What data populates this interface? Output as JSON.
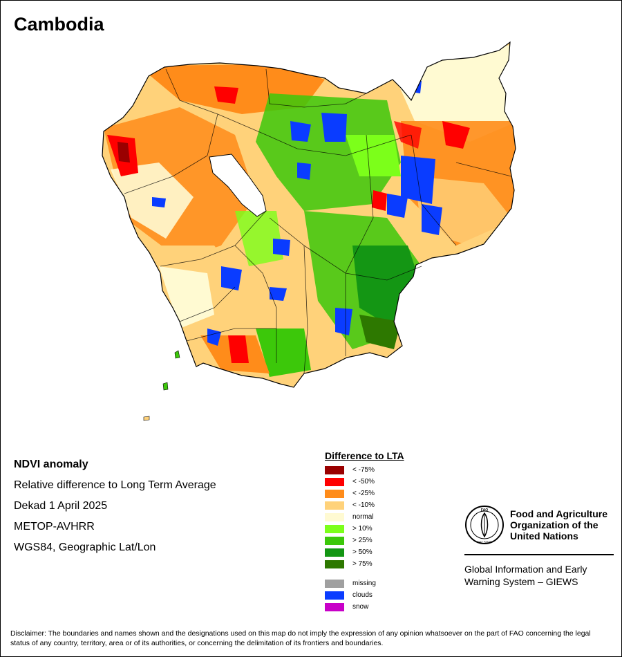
{
  "title": "Cambodia",
  "metadata": [
    "NDVI anomaly",
    "Relative difference to Long Term Average",
    "Dekad 1 April 2025",
    "METOP-AVHRR",
    "WGS84, Geographic Lat/Lon"
  ],
  "legend": {
    "title": "Difference to LTA",
    "items": [
      {
        "label": "< -75%",
        "color": "#9a0000"
      },
      {
        "label": "< -50%",
        "color": "#ff0000"
      },
      {
        "label": "< -25%",
        "color": "#ff8c1a"
      },
      {
        "label": "< -10%",
        "color": "#ffd27a"
      },
      {
        "label": "normal",
        "color": "#fffad2"
      },
      {
        "label": "> 10%",
        "color": "#7cff1a"
      },
      {
        "label": "> 25%",
        "color": "#3cc80a"
      },
      {
        "label": "> 50%",
        "color": "#149614"
      },
      {
        "label": "> 75%",
        "color": "#2d7800"
      }
    ],
    "extra": [
      {
        "label": "missing",
        "color": "#a0a0a0"
      },
      {
        "label": "clouds",
        "color": "#0a3cff"
      },
      {
        "label": "snow",
        "color": "#c800c8"
      }
    ]
  },
  "organization": {
    "emblem_letters": "FAO",
    "emblem_motto": "FIAT PANIS",
    "name_lines": [
      "Food and Agriculture",
      "Organization of the",
      "United Nations"
    ],
    "system_lines": [
      "Global Information and Early",
      "Warning System – GIEWS"
    ]
  },
  "disclaimer": "Disclaimer: The boundaries and names shown and the designations used on this map do not imply the expression of any opinion whatsoever on the part of FAO concerning the legal status of any country, territory, area or of its authorities, or concerning the delimitation of its frontiers and boundaries."
}
